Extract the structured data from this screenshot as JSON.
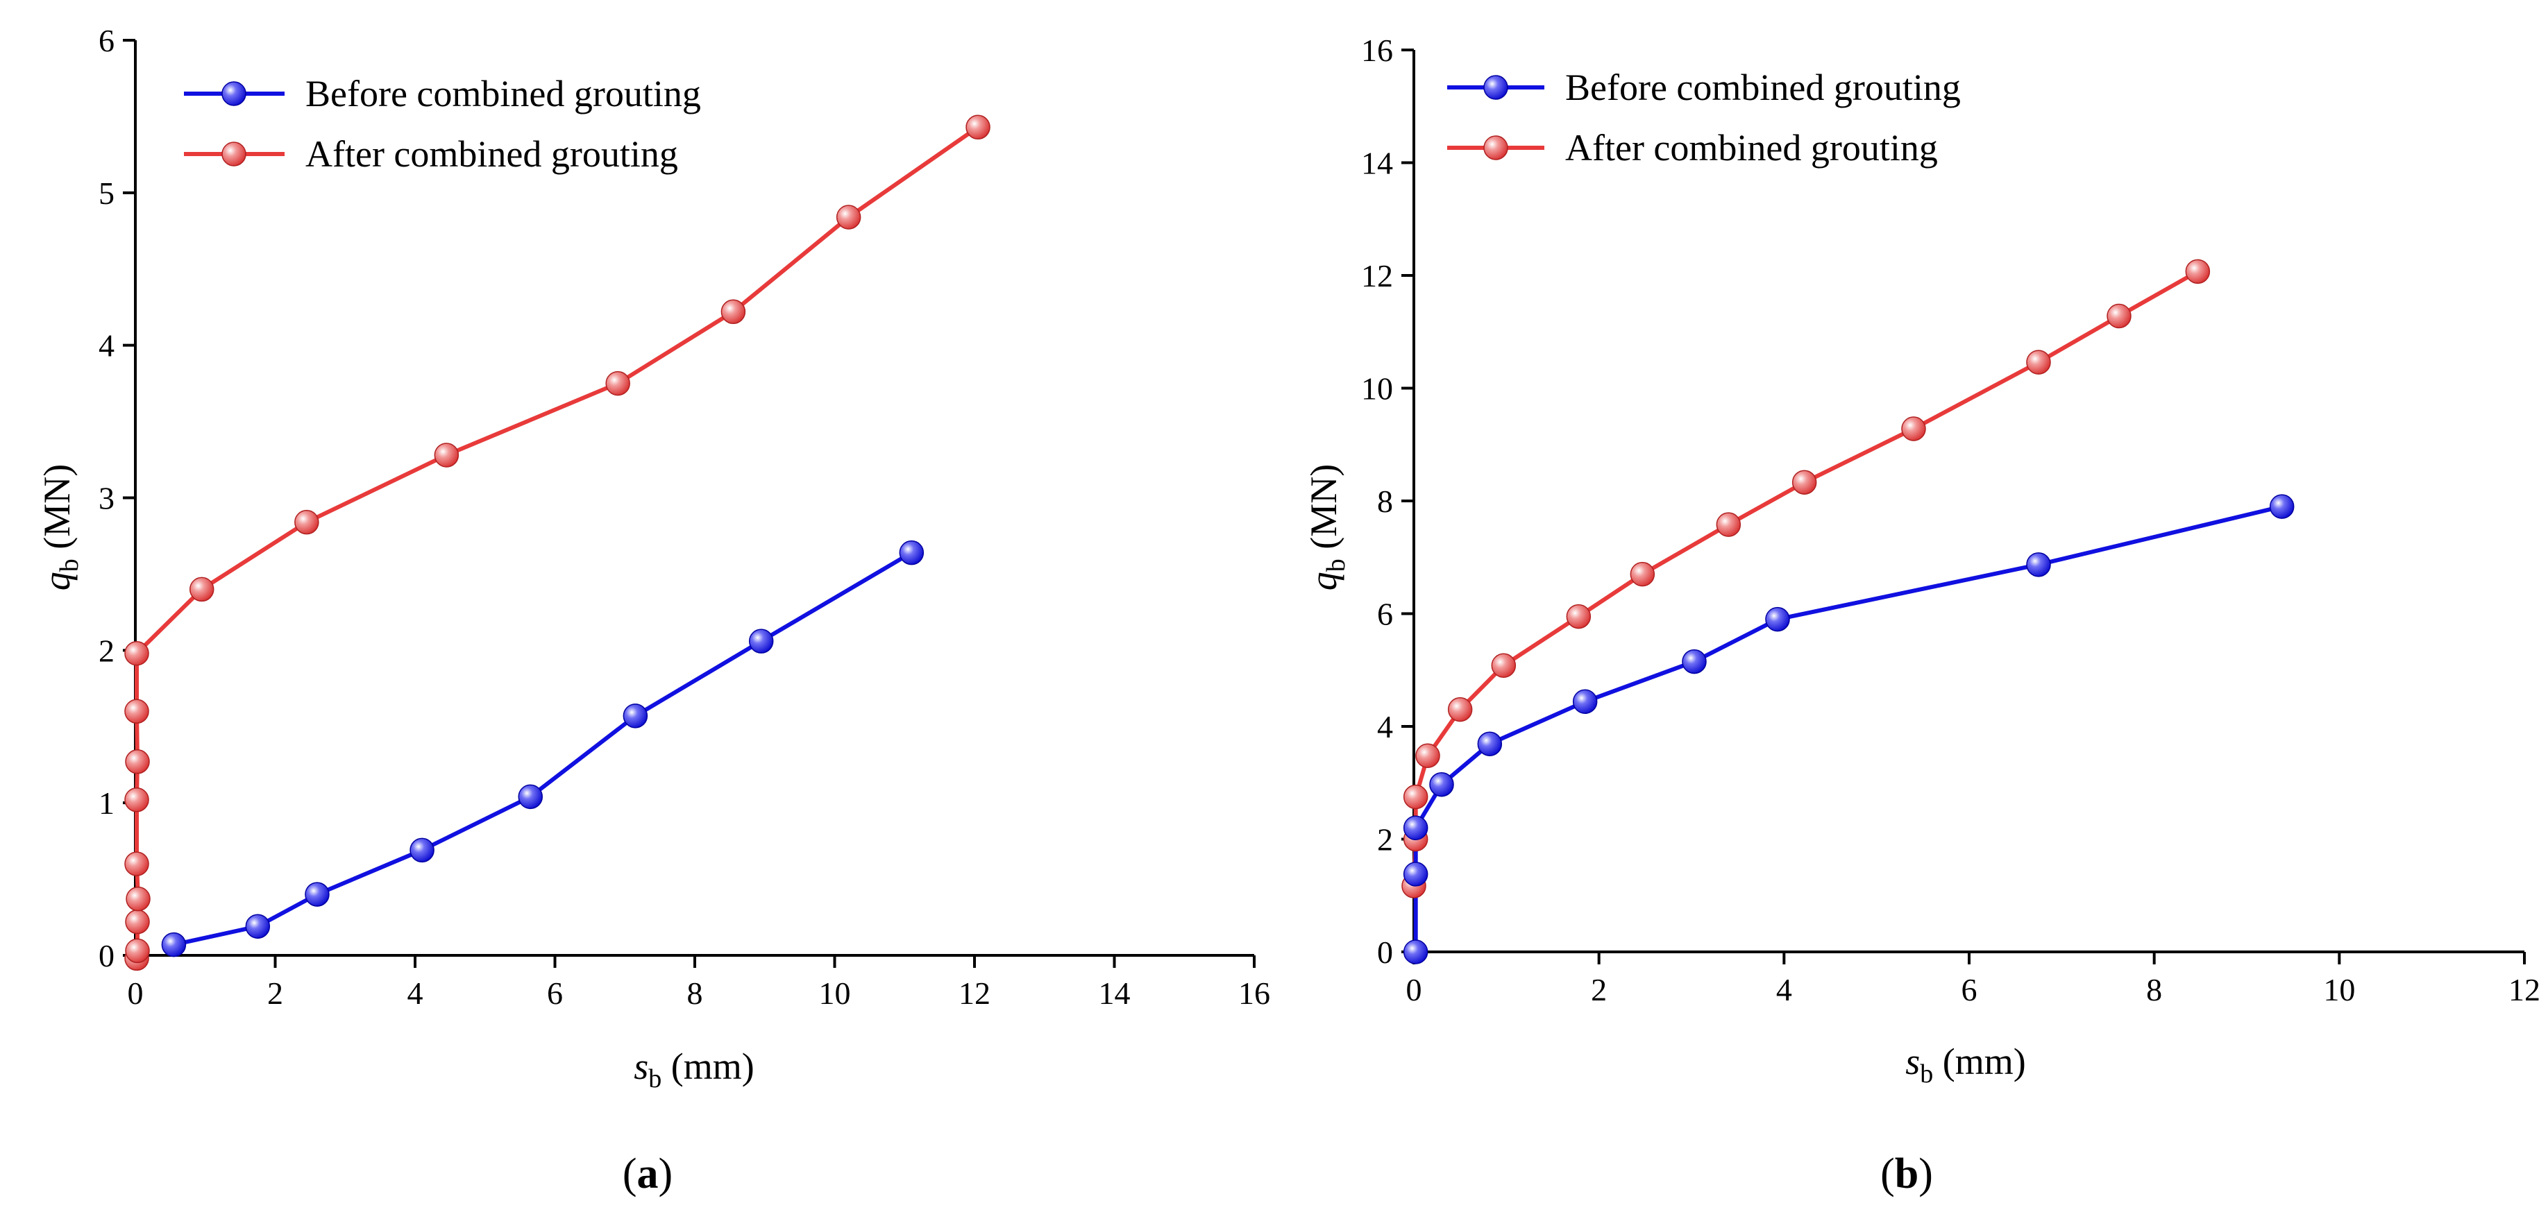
{
  "colors": {
    "before": "#1010e0",
    "after": "#e83a3a",
    "axis": "#000000"
  },
  "chart_data": [
    {
      "type": "line",
      "panel_label": "a",
      "xlabel_symbol": "s",
      "xlabel_sub": "b",
      "xlabel_unit": " (mm)",
      "ylabel_symbol": "q",
      "ylabel_sub": "b",
      "ylabel_unit": " (MN)",
      "xlim": [
        0,
        16
      ],
      "ylim": [
        0,
        6
      ],
      "xticks": [
        0,
        2,
        4,
        6,
        8,
        10,
        12,
        14,
        16
      ],
      "yticks": [
        0,
        1,
        2,
        3,
        4,
        5,
        6
      ],
      "legend_position": "top-left",
      "series": [
        {
          "name": "Before combined grouting",
          "x": [
            0.55,
            1.75,
            2.6,
            4.1,
            5.65,
            7.15,
            8.95,
            11.1
          ],
          "y": [
            0.07,
            0.19,
            0.4,
            0.69,
            1.04,
            1.57,
            2.06,
            2.64
          ]
        },
        {
          "name": "After combined grouting",
          "x": [
            0.02,
            0.03,
            0.03,
            0.04,
            0.02,
            0.02,
            0.03,
            0.02,
            0.02,
            0.95,
            2.45,
            4.45,
            6.9,
            8.55,
            10.2,
            12.05
          ],
          "y": [
            -0.02,
            0.03,
            0.22,
            0.37,
            0.6,
            1.02,
            1.27,
            1.6,
            1.98,
            2.4,
            2.84,
            3.28,
            3.75,
            4.22,
            4.84,
            5.43
          ]
        }
      ]
    },
    {
      "type": "line",
      "panel_label": "b",
      "xlabel_symbol": "s",
      "xlabel_sub": "b",
      "xlabel_unit": " (mm)",
      "ylabel_symbol": "q",
      "ylabel_sub": "b",
      "ylabel_unit": " (MN)",
      "xlim": [
        0,
        12
      ],
      "ylim": [
        0,
        16
      ],
      "xticks": [
        0,
        2,
        4,
        6,
        8,
        10,
        12
      ],
      "yticks": [
        0,
        2,
        4,
        6,
        8,
        10,
        12,
        14,
        16
      ],
      "legend_position": "top-left",
      "series": [
        {
          "name": "Before combined grouting",
          "x": [
            0.02,
            0.02,
            0.02,
            0.3,
            0.82,
            1.85,
            3.03,
            3.93,
            6.75,
            9.38
          ],
          "y": [
            0.0,
            1.38,
            2.2,
            2.97,
            3.69,
            4.44,
            5.15,
            5.9,
            6.87,
            7.9
          ],
          "draw_order_last": true
        },
        {
          "name": "After combined grouting",
          "x": [
            0.0,
            0.02,
            0.02,
            0.15,
            0.5,
            0.97,
            1.78,
            2.47,
            3.4,
            4.22,
            5.4,
            6.75,
            7.62,
            8.47
          ],
          "y": [
            1.17,
            2.0,
            2.75,
            3.48,
            4.3,
            5.08,
            5.95,
            6.7,
            7.58,
            8.33,
            9.28,
            10.46,
            11.28,
            12.07
          ]
        }
      ]
    }
  ]
}
